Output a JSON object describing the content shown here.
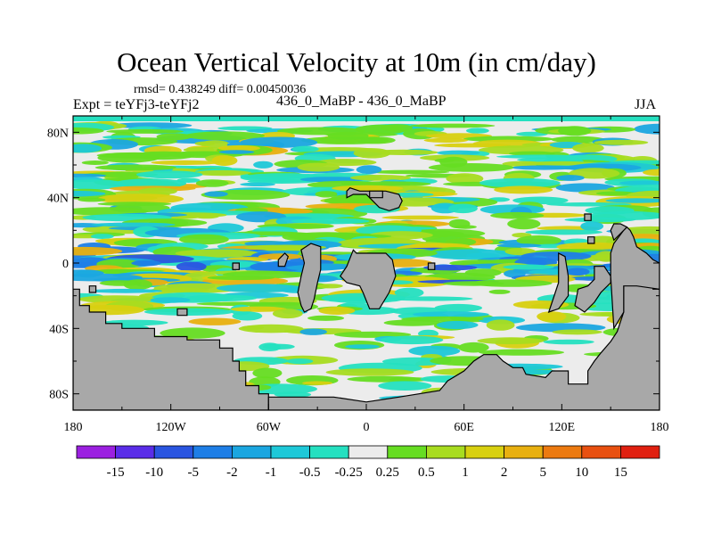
{
  "chart_data": {
    "type": "heatmap",
    "title": "Ocean Vertical Velocity at 10m (in cm/day)",
    "stats": "rmsd= 0.438249  diff= 0.00450036",
    "left_label": "Expt = teYFj3-teYFj2",
    "center_label": "436_0_MaBP - 436_0_MaBP",
    "right_label": "JJA",
    "x_ticks": [
      "180",
      "120W",
      "60W",
      "0",
      "60E",
      "120E",
      "180"
    ],
    "x_values": [
      -180,
      -120,
      -60,
      0,
      60,
      120,
      180
    ],
    "y_ticks": [
      "80N",
      "40N",
      "0",
      "40S",
      "80S"
    ],
    "y_values": [
      80,
      40,
      0,
      -40,
      -80
    ],
    "xlim": [
      -180,
      180
    ],
    "ylim": [
      -90,
      90
    ],
    "colorbar_labels": [
      "-15",
      "-10",
      "-5",
      "-2",
      "-1",
      "-0.5",
      "-0.25",
      "0.25",
      "0.5",
      "1",
      "2",
      "5",
      "10",
      "15"
    ],
    "colorbar_colors": [
      "#9b20e0",
      "#5a2de8",
      "#2a55e0",
      "#1e7ee6",
      "#1ba6e0",
      "#1ec8d8",
      "#25e0c0",
      "#ececec",
      "#66dd22",
      "#a8dc20",
      "#d8d010",
      "#e8b010",
      "#ec7a10",
      "#e85010",
      "#e02010"
    ],
    "land_color": "#a8a8a8"
  }
}
